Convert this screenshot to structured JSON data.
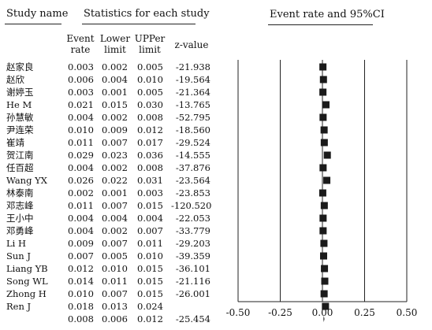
{
  "headers": {
    "study_name": "Study name",
    "statistics": "Statistics for each study",
    "event_rate_ci": "Event rate and 95%CI",
    "event_rate": [
      "Event",
      "rate"
    ],
    "lower_limit": [
      "Lower",
      "limit"
    ],
    "upper_limit": [
      "UPPer",
      "limit"
    ],
    "z_value": "z-value"
  },
  "chart_data": {
    "type": "forest",
    "columns": [
      "Study name",
      "Event rate",
      "Lower limit",
      "UPPer limit",
      "z-value"
    ],
    "rows": [
      {
        "study": "赵家良",
        "event_rate": "0.003",
        "lower": "0.002",
        "upper": "0.005",
        "z": "-21.938"
      },
      {
        "study": "赵欣",
        "event_rate": "0.006",
        "lower": "0.004",
        "upper": "0.010",
        "z": "-19.564"
      },
      {
        "study": "谢婷玉",
        "event_rate": "0.003",
        "lower": "0.001",
        "upper": "0.005",
        "z": "-21.364"
      },
      {
        "study": "He M",
        "event_rate": "0.021",
        "lower": "0.015",
        "upper": "0.030",
        "z": "-13.765"
      },
      {
        "study": "孙慧敏",
        "event_rate": "0.004",
        "lower": "0.002",
        "upper": "0.008",
        "z": "-52.795"
      },
      {
        "study": "尹连荣",
        "event_rate": "0.010",
        "lower": "0.009",
        "upper": "0.012",
        "z": "-18.560"
      },
      {
        "study": "崔靖",
        "event_rate": "0.011",
        "lower": "0.007",
        "upper": "0.017",
        "z": "-29.524"
      },
      {
        "study": "贺江南",
        "event_rate": "0.029",
        "lower": "0.023",
        "upper": "0.036",
        "z": "-14.555"
      },
      {
        "study": "任百超",
        "event_rate": "0.004",
        "lower": "0.002",
        "upper": "0.008",
        "z": "-37.876"
      },
      {
        "study": "Wang YX",
        "event_rate": "0.026",
        "lower": "0.022",
        "upper": "0.031",
        "z": "-23.564"
      },
      {
        "study": "林泰南",
        "event_rate": "0.002",
        "lower": "0.001",
        "upper": "0.003",
        "z": "-23.853"
      },
      {
        "study": "邓志峰",
        "event_rate": "0.011",
        "lower": "0.007",
        "upper": "0.015",
        "z": "-120.520"
      },
      {
        "study": "王小中",
        "event_rate": "0.004",
        "lower": "0.004",
        "upper": "0.004",
        "z": "-22.053"
      },
      {
        "study": "邓勇峰",
        "event_rate": "0.004",
        "lower": "0.002",
        "upper": "0.007",
        "z": "-33.779"
      },
      {
        "study": "Li H",
        "event_rate": "0.009",
        "lower": "0.007",
        "upper": "0.011",
        "z": "-29.203"
      },
      {
        "study": "Sun J",
        "event_rate": "0.007",
        "lower": "0.005",
        "upper": "0.010",
        "z": "-39.359"
      },
      {
        "study": "Liang YB",
        "event_rate": "0.012",
        "lower": "0.010",
        "upper": "0.015",
        "z": "-36.101"
      },
      {
        "study": "Song WL",
        "event_rate": "0.014",
        "lower": "0.011",
        "upper": "0.015",
        "z": "-21.116"
      },
      {
        "study": "Zhong H",
        "event_rate": "0.010",
        "lower": "0.007",
        "upper": "0.015",
        "z": "-26.001"
      },
      {
        "study": "Ren J",
        "event_rate": "0.018",
        "lower": "0.013",
        "upper": "0.024",
        "z": ""
      }
    ],
    "summary": {
      "study": "",
      "event_rate": "0.008",
      "lower": "0.006",
      "upper": "0.012",
      "z": "-25.454"
    },
    "x_ticks": [
      "-0.50",
      "-0.25",
      "0.00",
      "0.25",
      "0.50"
    ],
    "x_tick_values": [
      -0.5,
      -0.25,
      0,
      0.25,
      0.5
    ],
    "xlim": [
      -0.5,
      0.5
    ],
    "marker_color": "#1a1a1a"
  }
}
